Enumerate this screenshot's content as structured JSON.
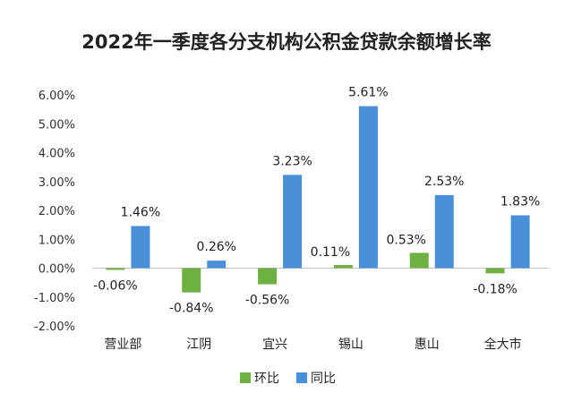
{
  "chart_data": {
    "type": "bar",
    "title": "2022年一季度各分支机构公积金贷款余额增长率",
    "categories": [
      "营业部",
      "江阴",
      "宜兴",
      "锡山",
      "惠山",
      "全大市"
    ],
    "series": [
      {
        "name": "环比",
        "color": "#6fb043",
        "values": [
          -0.06,
          -0.84,
          -0.56,
          0.11,
          0.53,
          -0.18
        ]
      },
      {
        "name": "同比",
        "color": "#4a90d9",
        "values": [
          1.46,
          0.26,
          3.23,
          5.61,
          2.53,
          1.83
        ]
      }
    ],
    "data_labels": {
      "环比": [
        "-0.06%",
        "-0.84%",
        "-0.56%",
        "0.11%",
        "0.53%",
        "-0.18%"
      ],
      "同比": [
        "1.46%",
        "0.26%",
        "3.23%",
        "5.61%",
        "2.53%",
        "1.83%"
      ]
    },
    "y_ticks": [
      6,
      5,
      4,
      3,
      2,
      1,
      0,
      -1,
      -2
    ],
    "y_tick_labels": [
      "6.00%",
      "5.00%",
      "4.00%",
      "3.00%",
      "2.00%",
      "1.00%",
      "0.00%",
      "-1.00%",
      "-2.00%"
    ],
    "ylim": [
      -2,
      6
    ],
    "xlabel": "",
    "ylabel": "",
    "grid": false,
    "legend_position": "bottom"
  }
}
